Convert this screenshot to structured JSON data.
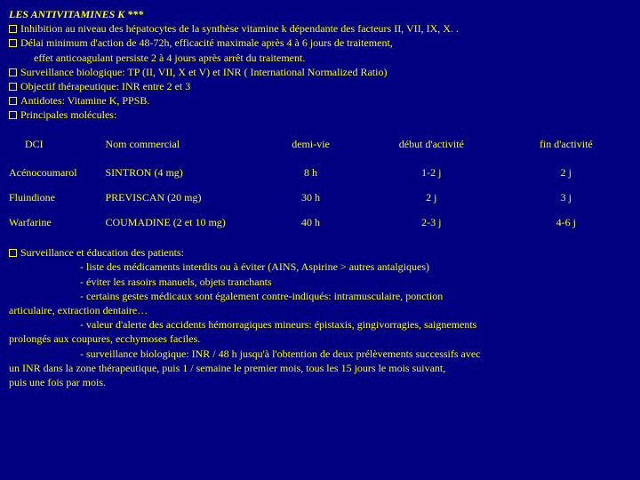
{
  "colors": {
    "background": "#000080",
    "text": "#ffff00"
  },
  "title": "LES ANTIVITAMINES K ***",
  "bullets_top": [
    "Inhibition au niveau des hépatocytes de la synthèse vitamine k dépendante des facteurs II, VII, IX, X. .",
    "Délai minimum d'action de 48-72h, efficacité maximale après 4 à 6 jours de traitement,",
    "effet anticoagulant persiste 2 à 4 jours après arrêt du traitement.",
    "Surveillance biologique: TP (II, VII, X et V) et INR ( International Normalized Ratio)",
    "Objectif thérapeutique: INR entre 2 et 3",
    "Antidotes: Vitamine K, PPSB.",
    "Principales molécules:"
  ],
  "bullets_top_box": [
    true,
    true,
    false,
    true,
    true,
    true,
    true
  ],
  "bullets_top_indent": [
    false,
    false,
    true,
    false,
    false,
    false,
    false
  ],
  "table": {
    "columns": [
      "DCI",
      "Nom commercial",
      "demi-vie",
      "début d'activité",
      "fin d'activité"
    ],
    "rows": [
      [
        "Acénocoumarol",
        "SINTRON (4 mg)",
        "8 h",
        "1-2 j",
        "2 j"
      ],
      [
        "Fluindione",
        "PREVISCAN (20 mg)",
        "30 h",
        "2 j",
        "3 j"
      ],
      [
        "Warfarine",
        "COUMADINE (2 et 10 mg)",
        "40 h",
        "2-3 j",
        "4-6 j"
      ]
    ]
  },
  "lower_heading": "Surveillance et éducation des patients:",
  "lower_lines": [
    "- liste des médicaments interdits ou à éviter (AINS, Aspirine > autres antalgiques)",
    "- éviter les rasoirs manuels, objets tranchants",
    "- certains gestes médicaux sont également contre-indiqués: intramusculaire, ponction",
    "articulaire, extraction dentaire…",
    "- valeur d'alerte des accidents hémorragiques mineurs: épistaxis, gingivorragies, saignements",
    "prolongés aux coupures, ecchymoses faciles.",
    "- surveillance biologique: INR / 48 h jusqu'à l'obtention de deux prélèvements successifs avec",
    "un INR dans la zone thérapeutique, puis 1 / semaine le premier mois, tous les 15 jours le mois suivant,",
    "puis une fois par mois."
  ],
  "lower_indent": [
    true,
    true,
    true,
    false,
    true,
    false,
    true,
    false,
    false
  ]
}
